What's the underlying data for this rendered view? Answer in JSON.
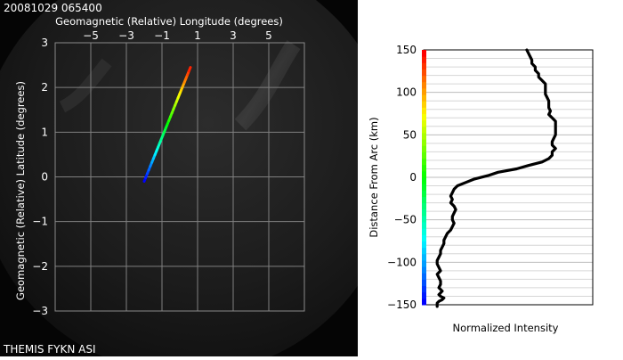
{
  "header": {
    "timestamp": "20081029 065400",
    "footer_label": "THEMIS FYKN ASI"
  },
  "colors": {
    "background": "#000000",
    "grid": "#808080",
    "profile_line": "#000000"
  },
  "chart_data": [
    {
      "type": "line",
      "title": "",
      "xlabel": "Geomagnetic (Relative) Longitude (degrees)",
      "ylabel": "Geomagnetic (Relative) Latitude (degrees)",
      "x_axis_position": "top",
      "xlim": [
        -7,
        7
      ],
      "ylim": [
        -3,
        3
      ],
      "xticks": [
        -5,
        -3,
        -1,
        1,
        3,
        5
      ],
      "xtick_labels": [
        "−5",
        "−3",
        "−1",
        "1",
        "3",
        "5"
      ],
      "yticks": [
        3,
        2,
        1,
        0,
        -1,
        -2,
        -3
      ],
      "ytick_labels": [
        "3",
        "2",
        "1",
        "0",
        "−1",
        "−2",
        "−3"
      ],
      "grid": true,
      "colormap": "rainbow (blue at start to red at end)",
      "series": [
        {
          "x": [
            -2.0,
            0.6
          ],
          "y": [
            -0.1,
            2.45
          ]
        }
      ]
    },
    {
      "type": "line",
      "title": "",
      "xlabel": "Normalized Intensity",
      "ylabel": "Distance From Arc (km)",
      "ylim": [
        -150,
        150
      ],
      "yticks": [
        150,
        100,
        50,
        0,
        -50,
        -100,
        -150
      ],
      "grid": true,
      "colorbar": "rainbow along y-axis (blue at -150 to red at 150)",
      "series": [
        {
          "x": [
            0.61,
            0.62,
            0.63,
            0.64,
            0.64,
            0.66,
            0.66,
            0.68,
            0.68,
            0.7,
            0.72,
            0.72,
            0.72,
            0.72,
            0.73,
            0.74,
            0.74,
            0.74,
            0.75,
            0.74,
            0.76,
            0.78,
            0.78,
            0.78,
            0.78,
            0.78,
            0.77,
            0.76,
            0.76,
            0.78,
            0.76,
            0.76,
            0.74,
            0.7,
            0.62,
            0.55,
            0.44,
            0.38,
            0.3,
            0.25,
            0.2,
            0.18,
            0.17,
            0.16,
            0.17,
            0.16,
            0.18,
            0.19,
            0.18,
            0.17,
            0.17,
            0.18,
            0.17,
            0.16,
            0.14,
            0.13,
            0.12,
            0.12,
            0.11,
            0.1,
            0.1,
            0.09,
            0.08,
            0.08,
            0.09,
            0.1,
            0.08,
            0.09,
            0.1,
            0.1,
            0.09,
            0.1,
            0.11,
            0.1,
            0.09,
            0.1,
            0.12,
            0.11,
            0.09,
            0.08,
            0.08,
            0.08
          ],
          "y": [
            150,
            146,
            142,
            138,
            134,
            130,
            126,
            122,
            118,
            114,
            110,
            106,
            102,
            98,
            94,
            90,
            86,
            82,
            78,
            74,
            70,
            66,
            62,
            58,
            54,
            50,
            46,
            42,
            38,
            34,
            30,
            26,
            22,
            18,
            14,
            10,
            6,
            2,
            -2,
            -6,
            -10,
            -14,
            -18,
            -22,
            -26,
            -30,
            -34,
            -38,
            -42,
            -46,
            -50,
            -54,
            -58,
            -62,
            -66,
            -70,
            -74,
            -78,
            -82,
            -86,
            -90,
            -94,
            -98,
            -102,
            -106,
            -110,
            -114,
            -118,
            -122,
            -126,
            -130,
            -132,
            -134,
            -136,
            -138,
            -140,
            -142,
            -144,
            -146,
            -148,
            -150,
            -152
          ]
        }
      ]
    }
  ]
}
